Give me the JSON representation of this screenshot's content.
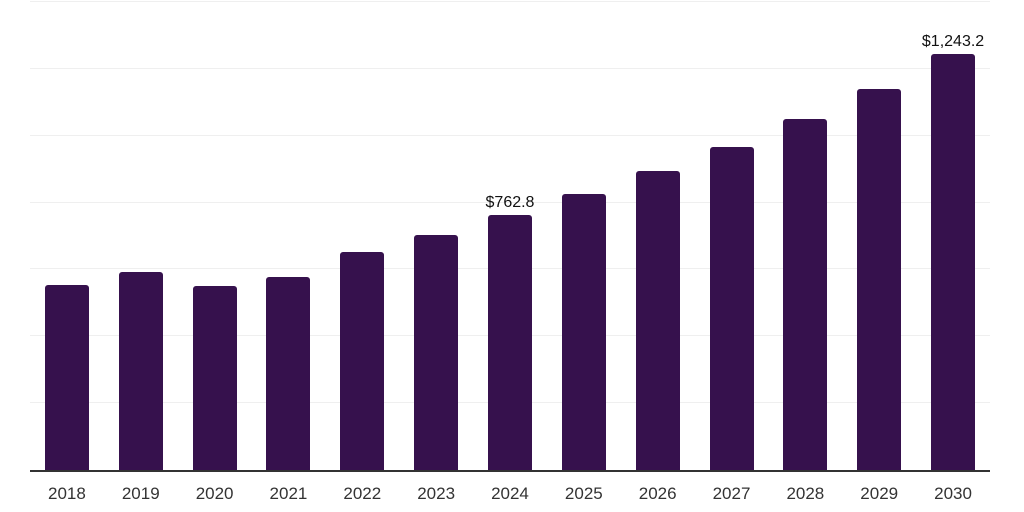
{
  "chart_data": {
    "type": "bar",
    "title": "",
    "xlabel": "",
    "ylabel": "",
    "categories": [
      "2018",
      "2019",
      "2020",
      "2021",
      "2022",
      "2023",
      "2024",
      "2025",
      "2026",
      "2027",
      "2028",
      "2029",
      "2030"
    ],
    "values": [
      553,
      592,
      551,
      578,
      653,
      703,
      762.8,
      827,
      895,
      967,
      1051,
      1141,
      1243.2
    ],
    "annotations": {
      "2024": "$762.8",
      "2030": "$1,243.2"
    },
    "ylim": [
      0,
      1400
    ],
    "grid_step": 200,
    "grid": true,
    "legend": false,
    "y_tick_labels_visible": false,
    "colors": {
      "bar": "#36114d",
      "gridline": "#efefef",
      "axis_line": "#333333",
      "x_tick_label": "#333333",
      "annotation_text": "#111111",
      "background": "#ffffff"
    }
  }
}
